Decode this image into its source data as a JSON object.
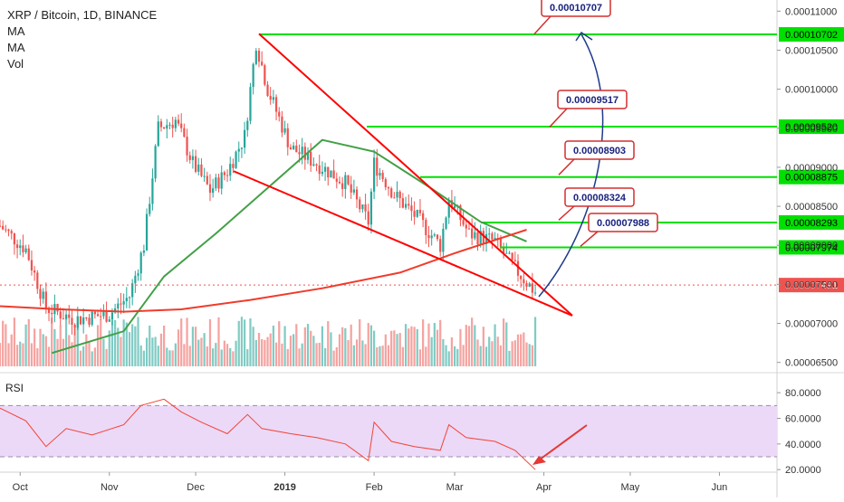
{
  "header": {
    "symbol": "XRP / Bitcoin, 1D, BINANCE",
    "indicators": [
      "MA",
      "MA",
      "Vol"
    ]
  },
  "rsi_label": "RSI",
  "colors": {
    "up": "#26a69a",
    "down": "#ef5350",
    "ma_fast": "#43a047",
    "ma_slow": "#f03b2b",
    "wedge": "#ff0000",
    "level": "#00e000",
    "rsi": "#f44336",
    "rsi_band": "#ebd9f7",
    "arrow_blue": "#1e3a8a"
  },
  "chart_data": [
    {
      "type": "candlestick",
      "y_ticks": [
        "0.00011000",
        "0.00010500",
        "0.00010000",
        "0.00009500",
        "0.00009000",
        "0.00008500",
        "0.00008000",
        "0.00007500",
        "0.00007000",
        "0.00006500"
      ],
      "ylim": [
        6.45e-05,
        0.0001105
      ],
      "x_ticks": [
        "Oct",
        "Nov",
        "Dec",
        "2019",
        "Feb",
        "Mar",
        "Apr",
        "May",
        "Jun"
      ],
      "x_tick_dates": [
        "2018-10-01",
        "2018-11-01",
        "2018-12-01",
        "2019-01-01",
        "2019-02-01",
        "2019-03-01",
        "2019-04-01",
        "2019-05-01",
        "2019-06-01"
      ],
      "xlim": [
        "2018-09-24",
        "2019-06-21"
      ],
      "last_price": "0.00007491",
      "last_price_value": 7.491e-05,
      "levels": [
        {
          "label": "0.00010702",
          "value": 0.00010702
        },
        {
          "label": "0.00009520",
          "value": 9.52e-05
        },
        {
          "label": "0.00008875",
          "value": 8.875e-05
        },
        {
          "label": "0.00008293",
          "value": 8.293e-05
        },
        {
          "label": "0.00007974",
          "value": 7.974e-05
        }
      ],
      "callouts": [
        {
          "text": "0.00010707",
          "value": 0.00010707
        },
        {
          "text": "0.00009517",
          "value": 9.517e-05
        },
        {
          "text": "0.00008903",
          "value": 8.903e-05
        },
        {
          "text": "0.00008324",
          "value": 8.324e-05
        },
        {
          "text": "0.00007988",
          "value": 7.988e-05
        }
      ],
      "series": [
        {
          "name": "MA",
          "points": [
            [
              "2018-10-12",
              6.62e-05
            ],
            [
              "2018-11-06",
              6.9e-05
            ],
            [
              "2018-11-20",
              7.6e-05
            ],
            [
              "2018-12-08",
              8.15e-05
            ],
            [
              "2018-12-28",
              8.8e-05
            ],
            [
              "2019-01-14",
              9.35e-05
            ],
            [
              "2019-02-01",
              9.2e-05
            ],
            [
              "2019-02-20",
              8.75e-05
            ],
            [
              "2019-03-10",
              8.3e-05
            ],
            [
              "2019-03-26",
              8.05e-05
            ]
          ]
        },
        {
          "name": "MA",
          "points": [
            [
              "2018-09-24",
              7.22e-05
            ],
            [
              "2018-10-15",
              7.18e-05
            ],
            [
              "2018-11-06",
              7.15e-05
            ],
            [
              "2018-11-26",
              7.18e-05
            ],
            [
              "2018-12-20",
              7.3e-05
            ],
            [
              "2019-01-14",
              7.45e-05
            ],
            [
              "2019-02-10",
              7.65e-05
            ],
            [
              "2019-03-01",
              7.9e-05
            ],
            [
              "2019-03-26",
              8.2e-05
            ]
          ]
        }
      ]
    },
    {
      "type": "line",
      "name": "RSI",
      "y_ticks": [
        "80.0000",
        "60.0000",
        "40.0000",
        "20.0000"
      ],
      "ylim": [
        18,
        90
      ],
      "bands": [
        70,
        30
      ],
      "points": [
        [
          "2018-09-24",
          68
        ],
        [
          "2018-10-03",
          58
        ],
        [
          "2018-10-10",
          38
        ],
        [
          "2018-10-17",
          52
        ],
        [
          "2018-10-26",
          47
        ],
        [
          "2018-11-06",
          55
        ],
        [
          "2018-11-12",
          70
        ],
        [
          "2018-11-20",
          75
        ],
        [
          "2018-11-26",
          65
        ],
        [
          "2018-12-03",
          57
        ],
        [
          "2018-12-12",
          48
        ],
        [
          "2018-12-19",
          63
        ],
        [
          "2018-12-24",
          52
        ],
        [
          "2019-01-03",
          48
        ],
        [
          "2019-01-12",
          45
        ],
        [
          "2019-01-22",
          40
        ],
        [
          "2019-01-30",
          27
        ],
        [
          "2019-02-01",
          57
        ],
        [
          "2019-02-07",
          42
        ],
        [
          "2019-02-15",
          38
        ],
        [
          "2019-02-24",
          35
        ],
        [
          "2019-02-27",
          55
        ],
        [
          "2019-03-05",
          45
        ],
        [
          "2019-03-15",
          42
        ],
        [
          "2019-03-22",
          35
        ],
        [
          "2019-03-29",
          20
        ]
      ]
    }
  ]
}
